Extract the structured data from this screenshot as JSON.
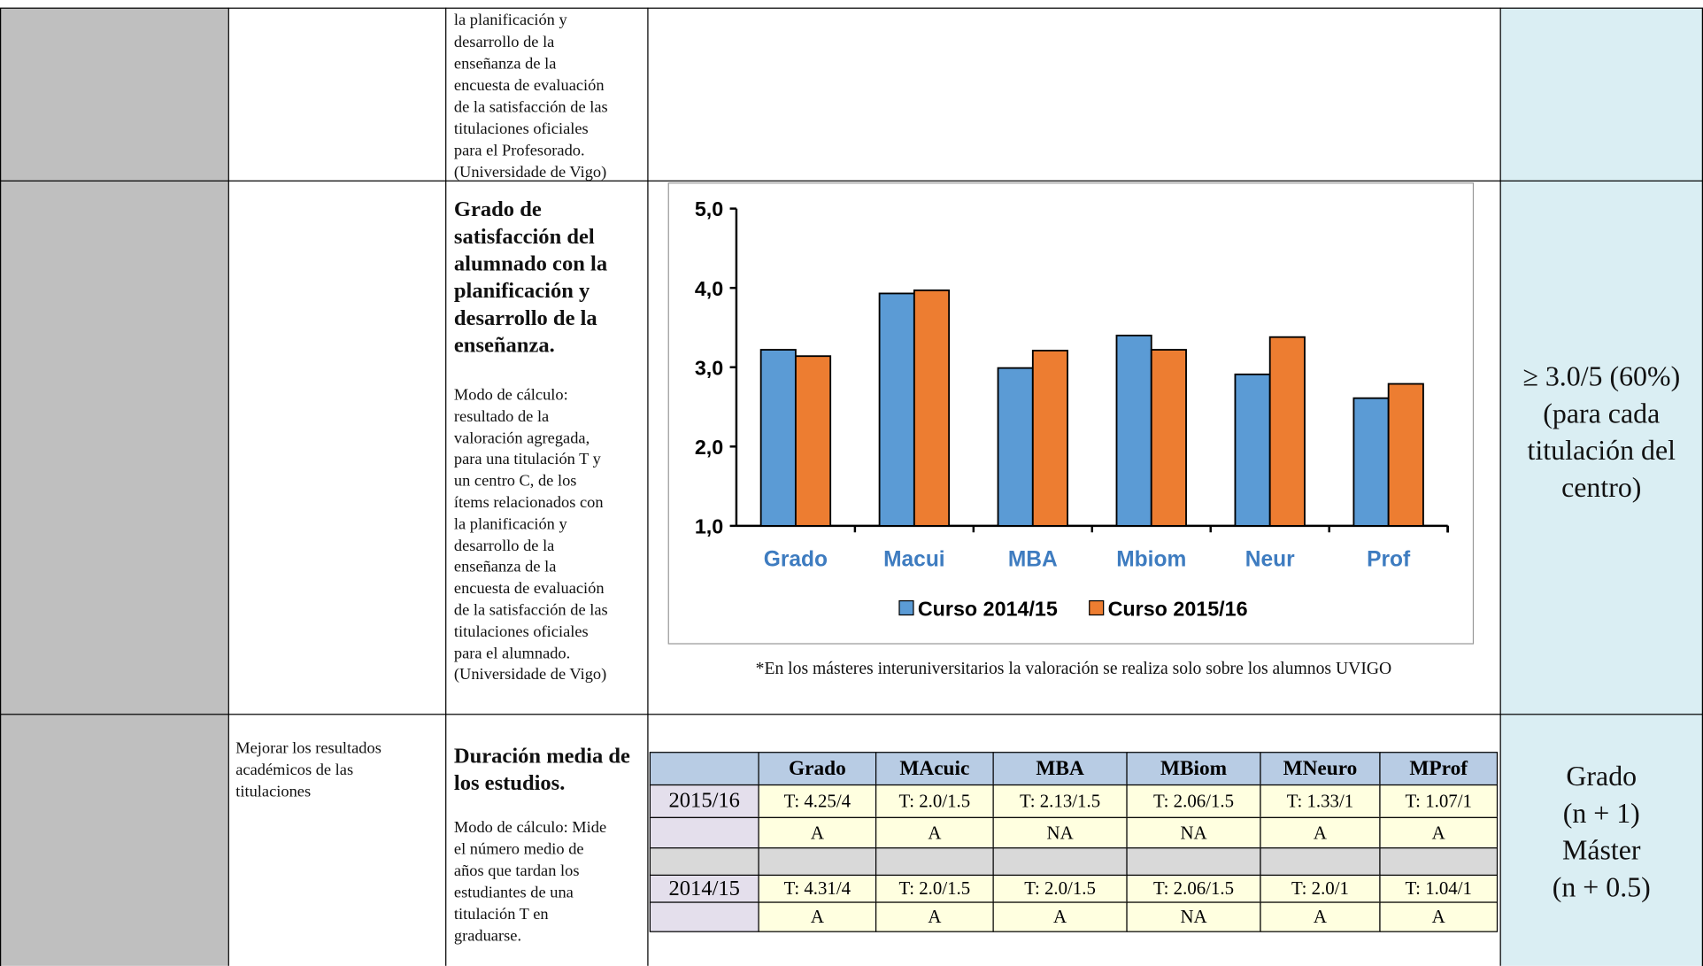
{
  "rows": [
    {
      "indicator_text": "la planificación y\ndesarrollo de la\nenseñanza de la\nencuesta de evaluación\nde la satisfacción de las\ntitulaciones oficiales\npara el Profesorado.\n (Universidade de Vigo)"
    },
    {
      "indicator_title": "Grado de\nsatisfacción del\nalumnado con la\nplanificación y\ndesarrollo de la\nenseñanza.",
      "indicator_text": "Modo de cálculo:\nresultado de la\nvaloración agregada,\npara una titulación T y\nun centro C, de los\nítems relacionados con\nla planificación y\ndesarrollo de la\nenseñanza de la\nencuesta de evaluación\nde la satisfacción de las\ntitulaciones oficiales\npara el alumnado.\n (Universidade de Vigo)",
      "chart": {
        "type": "bar",
        "categories": [
          "Grado",
          "Macui",
          "MBA",
          "Mbiom",
          "Neur",
          "Prof"
        ],
        "series": [
          {
            "name": "Curso 2014/15",
            "color": "#5b9bd5",
            "values": [
              3.22,
              3.93,
              2.99,
              3.4,
              2.91,
              2.61
            ]
          },
          {
            "name": "Curso 2015/16",
            "color": "#ed7d31",
            "values": [
              3.14,
              3.97,
              3.21,
              3.22,
              3.38,
              2.79
            ]
          }
        ],
        "ylim": [
          1,
          5
        ],
        "yticks": [
          {
            "value": 1,
            "label": "1,0"
          },
          {
            "value": 2,
            "label": "2,0"
          },
          {
            "value": 3,
            "label": "3,0"
          },
          {
            "value": 4,
            "label": "4,0"
          },
          {
            "value": 5,
            "label": "5,0"
          }
        ],
        "legend": "bottom"
      },
      "note": "*En los másteres interuniversitarios la valoración se realiza solo sobre los alumnos UVIGO",
      "target": "≥ 3.0/5 (60%)\n(para cada\ntitulación del\ncentro)"
    },
    {
      "objective": "Mejorar los resultados\nacadémicos de las\ntitulaciones",
      "indicator_title": "Duración media de\nlos estudios.",
      "indicator_text": "Modo de cálculo: Mide\nel número medio de\naños que tardan los\nestudiantes de una\ntitulación T en\ngraduarse.",
      "table": {
        "columns": [
          "Grado",
          "MAcuic",
          "MBA",
          "MBiom",
          "MNeuro",
          "MProf"
        ],
        "rows": [
          {
            "label": "2015/16",
            "values": [
              "T: 4.25/4",
              "T: 2.0/1.5",
              "T: 2.13/1.5",
              "T: 2.06/1.5",
              "T: 1.33/1",
              "T: 1.07/1"
            ],
            "grades": [
              "A",
              "A",
              "NA",
              "NA",
              "A",
              "A"
            ]
          },
          {
            "label": "2014/15",
            "values": [
              "T: 4.31/4",
              "T: 2.0/1.5",
              "T: 2.0/1.5",
              "T: 2.06/1.5",
              "T: 2.0/1",
              "T: 1.04/1"
            ],
            "grades": [
              "A",
              "A",
              "A",
              "NA",
              "A",
              "A"
            ]
          }
        ]
      },
      "target": "Grado\n(n + 1)\nMáster\n(n + 0.5)"
    }
  ]
}
